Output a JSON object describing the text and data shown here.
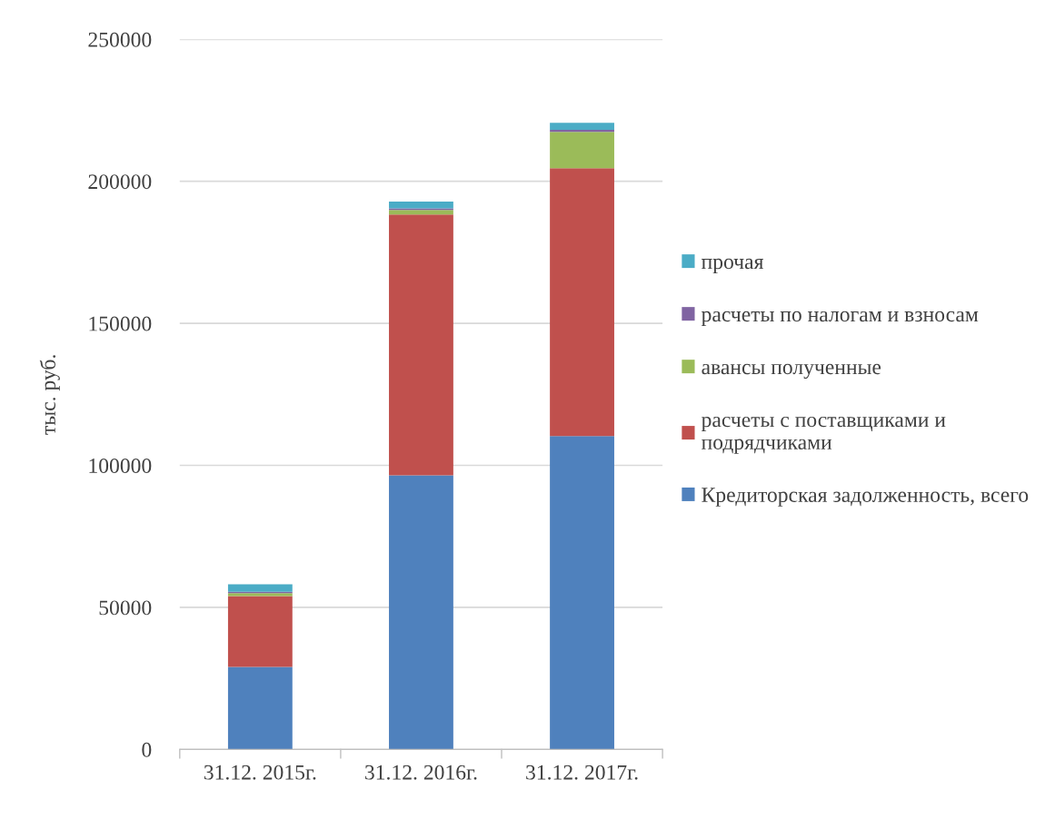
{
  "chart_data": {
    "type": "bar",
    "stacked": true,
    "ylabel": "тыс. руб.",
    "categories": [
      "31.12. 2015г.",
      "31.12. 2016г.",
      "31.12. 2017г."
    ],
    "series": [
      {
        "name": "Кредиторская задолженность, всего",
        "color": "#4f81bd",
        "values": [
          29000,
          96500,
          110300
        ]
      },
      {
        "name": "расчеты с поставщиками и подрядчиками",
        "color": "#c0504d",
        "values": [
          25000,
          91800,
          94300
        ]
      },
      {
        "name": "авансы полученные",
        "color": "#9bbb59",
        "values": [
          1000,
          1600,
          12800
        ]
      },
      {
        "name": "расчеты по налогам и взносам",
        "color": "#8064a2",
        "values": [
          500,
          600,
          700
        ]
      },
      {
        "name": "прочая",
        "color": "#4bacc6",
        "values": [
          2600,
          2400,
          2500
        ]
      }
    ],
    "ylim": [
      0,
      250000
    ],
    "yticks": [
      0,
      50000,
      100000,
      150000,
      200000,
      250000
    ],
    "grid": "y",
    "legend": "right"
  }
}
